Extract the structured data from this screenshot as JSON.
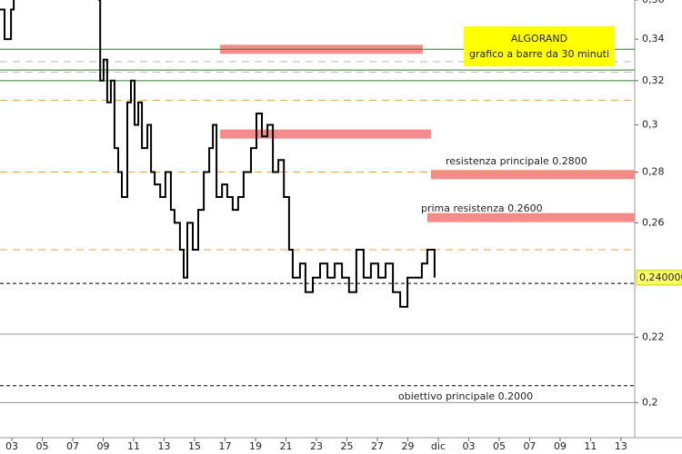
{
  "chart_data": {
    "type": "line",
    "title": "ALGORAND",
    "subtitle": "grafico a barre da 30 minuti",
    "log_scale": true,
    "ylim": [
      0.19,
      0.36
    ],
    "yticks": [
      {
        "value": 0.36,
        "label": "0,36"
      },
      {
        "value": 0.34,
        "label": "0,34"
      },
      {
        "value": 0.32,
        "label": "0,32"
      },
      {
        "value": 0.3,
        "label": "0,3"
      },
      {
        "value": 0.28,
        "label": "0,28"
      },
      {
        "value": 0.26,
        "label": "0,26"
      },
      {
        "value": 0.22,
        "label": "0,22"
      },
      {
        "value": 0.2,
        "label": "0,2"
      }
    ],
    "xlim": [
      -0.39,
      20.45
    ],
    "xticks": [
      {
        "value": 0,
        "label": "03"
      },
      {
        "value": 1,
        "label": "05"
      },
      {
        "value": 2,
        "label": "07"
      },
      {
        "value": 3,
        "label": "09"
      },
      {
        "value": 4,
        "label": "11"
      },
      {
        "value": 5,
        "label": "13"
      },
      {
        "value": 6,
        "label": "15"
      },
      {
        "value": 7,
        "label": "17"
      },
      {
        "value": 8,
        "label": "19"
      },
      {
        "value": 9,
        "label": "21"
      },
      {
        "value": 10,
        "label": "23"
      },
      {
        "value": 11,
        "label": "25"
      },
      {
        "value": 12,
        "label": "27"
      },
      {
        "value": 13,
        "label": "29"
      },
      {
        "value": 14,
        "label": "dic"
      },
      {
        "value": 15,
        "label": "03"
      },
      {
        "value": 16,
        "label": "05"
      },
      {
        "value": 17,
        "label": "07"
      },
      {
        "value": 18,
        "label": "09"
      },
      {
        "value": 19,
        "label": "11"
      },
      {
        "value": 20,
        "label": "13"
      }
    ],
    "series": [
      {
        "color": "#000000",
        "x": [
          -0.39,
          -0.24,
          -0.03,
          0.06,
          1.5,
          2.84,
          2.9,
          3.01,
          3.13,
          3.25,
          3.37,
          3.49,
          3.61,
          3.79,
          3.91,
          4.03,
          4.15,
          4.27,
          4.45,
          4.57,
          4.69,
          4.87,
          5.04,
          5.22,
          5.34,
          5.52,
          5.64,
          5.76,
          5.94,
          6.12,
          6.3,
          6.48,
          6.6,
          6.72,
          6.9,
          7.07,
          7.25,
          7.43,
          7.61,
          7.85,
          8.03,
          8.21,
          8.39,
          8.57,
          8.75,
          8.93,
          9.1,
          9.22,
          9.46,
          9.64,
          9.88,
          10.12,
          10.36,
          10.6,
          10.84,
          11.07,
          11.31,
          11.55,
          11.79,
          12.03,
          12.27,
          12.51,
          12.75,
          12.99,
          13.22,
          13.46,
          13.64,
          13.88
        ],
        "values": [
          0.355,
          0.34,
          0.355,
          0.36,
          null,
          0.36,
          0.32,
          0.33,
          0.31,
          0.32,
          0.29,
          0.28,
          0.27,
          0.31,
          0.32,
          0.3,
          0.31,
          0.29,
          0.3,
          0.28,
          0.275,
          0.27,
          0.28,
          0.265,
          0.26,
          0.25,
          0.24,
          0.26,
          0.25,
          0.265,
          0.28,
          0.29,
          0.3,
          0.27,
          0.275,
          0.27,
          0.265,
          0.27,
          0.28,
          0.29,
          0.305,
          0.295,
          0.3,
          0.28,
          0.285,
          0.27,
          0.25,
          0.24,
          0.245,
          0.235,
          0.24,
          0.245,
          0.24,
          0.245,
          0.24,
          0.235,
          0.25,
          0.24,
          0.245,
          0.24,
          0.245,
          0.235,
          0.23,
          0.24,
          0.24,
          0.245,
          0.25,
          0.24
        ]
      }
    ],
    "levels": [
      {
        "value": 0.28,
        "color": "#f0a040",
        "dash": "8 6"
      },
      {
        "value": 0.25,
        "color": "#f0a040",
        "dash": "8 6"
      },
      {
        "value": 0.311,
        "color": "#f0a040",
        "dash": "8 6"
      },
      {
        "value": 0.329,
        "color": "#bbbbbb",
        "dash": "8 6"
      },
      {
        "value": 0.324,
        "color": "#bbbbbb",
        "dash": "8 6"
      },
      {
        "value": 0.238,
        "color": "#000000",
        "dash": "4 3"
      },
      {
        "value": 0.205,
        "color": "#000000",
        "dash": "4 3"
      },
      {
        "value": 0.221,
        "color": "#999999",
        "dash": "none"
      },
      {
        "value": 0.2,
        "color": "#999999",
        "dash": "none"
      },
      {
        "value": 0.335,
        "color": "#2e7d32",
        "dash": "none"
      },
      {
        "value": 0.325,
        "color": "#2e7d32",
        "dash": "none"
      },
      {
        "value": 0.32,
        "color": "#2e7d32",
        "dash": "none"
      }
    ],
    "zones": [
      {
        "value": 0.335,
        "x": [
          6.84,
          13.49
        ],
        "color": "#f48a8a"
      },
      {
        "value": 0.296,
        "x": [
          6.84,
          13.76
        ],
        "color": "#f48a8a"
      },
      {
        "value": 0.279,
        "x": [
          13.76,
          20.45
        ],
        "color": "#f48a8a"
      },
      {
        "value": 0.262,
        "x": [
          13.64,
          20.45
        ],
        "color": "#f48a8a"
      }
    ],
    "annotations": [
      "resistenza principale 0.2800",
      "prima resistenza 0.2600",
      "obiettivo principale 0.2000"
    ],
    "last_price": {
      "value": 0.24,
      "label": "0,240000"
    }
  }
}
